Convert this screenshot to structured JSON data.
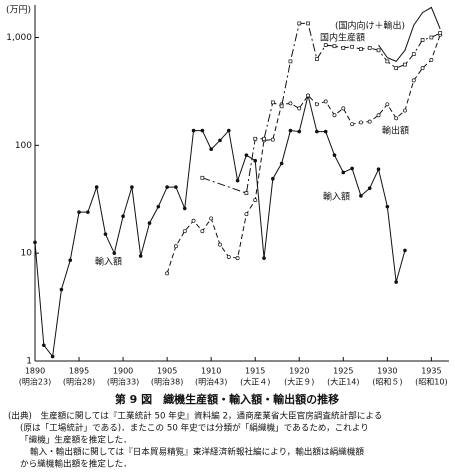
{
  "chart_data": {
    "type": "line",
    "title": "第 9 図　織機生産額・輸入額・輸出額の推移",
    "ylabel": "(万円)",
    "log_y": true,
    "xlim": [
      1890,
      1937
    ],
    "ylim": [
      1,
      2000
    ],
    "xticks": [
      1890,
      1895,
      1900,
      1905,
      1910,
      1915,
      1920,
      1925,
      1930,
      1935
    ],
    "xtick_sublabels": [
      "(明治23)",
      "(明治28)",
      "(明治33)",
      "(明治38)",
      "(明治43)",
      "(大正４)",
      "(大正９)",
      "(大正14)",
      "(昭和５)",
      "(昭和10)"
    ],
    "yticks": [
      1,
      10,
      100,
      {
        "value": 1000,
        "label": "1,000"
      }
    ],
    "series": [
      {
        "name": "輸入額",
        "color": "#111",
        "style": "solid",
        "marker": "dot",
        "x": [
          1890,
          1891,
          1892,
          1893,
          1894,
          1895,
          1896,
          1897,
          1898,
          1899,
          1900,
          1901,
          1902,
          1903,
          1904,
          1905,
          1906,
          1907,
          1908,
          1909,
          1910,
          1911,
          1912,
          1913,
          1914,
          1915,
          1916,
          1917,
          1918,
          1919,
          1920,
          1921,
          1922,
          1923,
          1924,
          1925,
          1926,
          1927,
          1928,
          1929,
          1930,
          1931,
          1932
        ],
        "values": [
          12.6,
          1.4,
          1.1,
          4.6,
          8.6,
          24,
          24,
          41,
          15,
          10,
          22,
          41,
          9.4,
          19,
          27,
          41,
          41,
          26,
          137,
          137,
          92,
          111,
          137,
          47,
          81,
          72,
          9,
          49,
          68,
          137,
          134,
          290,
          134,
          134,
          81,
          56,
          61,
          34,
          40,
          60,
          27,
          5.4,
          10.6
        ]
      },
      {
        "name": "輸出額",
        "color": "#111",
        "style": "dashed",
        "marker": "circle",
        "x": [
          1905,
          1906,
          1907,
          1908,
          1909,
          1910,
          1911,
          1912,
          1913,
          1914,
          1915,
          1916,
          1917,
          1918,
          1919,
          1920,
          1921,
          1922,
          1923,
          1924,
          1925,
          1926,
          1927,
          1928,
          1929,
          1930,
          1931,
          1932,
          1933,
          1934,
          1935,
          1936
        ],
        "values": [
          6.5,
          11.6,
          16,
          20,
          16,
          21,
          12,
          9.2,
          9,
          23,
          31,
          111,
          113,
          240,
          245,
          220,
          290,
          240,
          255,
          190,
          220,
          157,
          163,
          166,
          190,
          240,
          178,
          210,
          400,
          520,
          620,
          1060
        ]
      },
      {
        "name": "国内生産額",
        "color": "#111",
        "style": "dashdot",
        "marker": "square",
        "x": [
          1909,
          1914,
          1915,
          1916,
          1917,
          1918,
          1919,
          1920,
          1921,
          1922,
          1923,
          1924,
          1925,
          1926,
          1927,
          1928,
          1929,
          1930,
          1931,
          1932,
          1933,
          1934,
          1935,
          1936
        ],
        "values": [
          50,
          36,
          115,
          115,
          250,
          230,
          600,
          1350,
          1350,
          630,
          850,
          830,
          800,
          820,
          780,
          800,
          760,
          600,
          520,
          560,
          700,
          950,
          1000,
          1100
        ]
      },
      {
        "name": "(国内向け＋輸出)",
        "color": "#111",
        "style": "solid",
        "marker": "none",
        "x": [
          1929,
          1930,
          1931,
          1932,
          1933,
          1934,
          1935,
          1936
        ],
        "values": [
          850,
          650,
          600,
          760,
          1300,
          1700,
          1900,
          1200
        ]
      }
    ],
    "annotations": [
      "輸入額"
    ],
    "notes": [
      "(出典)　生産額に関しては『工業統計 50 年史』資料編 2，通商産業省大臣官房調査統計部による",
      "(原は「工場統計」である)．またこの 50 年史では分類が「絹織機」であるため，これより",
      "「織機」生産額を推定した．",
      "輸入・輸出額に関しては『日本貿易精覧』東洋経済新報社編により，輸出額は絹織機額",
      "から織機輸出額を推定した．"
    ]
  }
}
